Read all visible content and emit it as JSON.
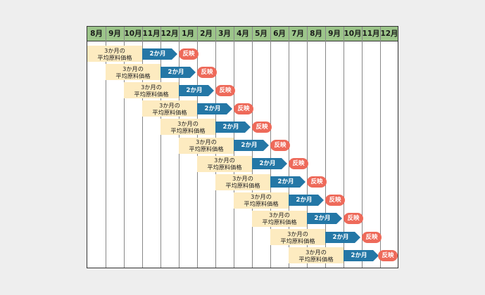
{
  "months": [
    "8月",
    "9月",
    "10月",
    "11月",
    "12月",
    "1月",
    "2月",
    "3月",
    "4月",
    "5月",
    "6月",
    "7月",
    "8月",
    "9月",
    "10月",
    "11月",
    "12月"
  ],
  "rows": [
    {
      "avg_line1": "3か月の",
      "avg_line2": "平均原料価格",
      "arrow": "2か月",
      "badge": "反映"
    },
    {
      "avg_line1": "3か月の",
      "avg_line2": "平均原料価格",
      "arrow": "2か月",
      "badge": "反映"
    },
    {
      "avg_line1": "3か月の",
      "avg_line2": "平均原料価格",
      "arrow": "2か月",
      "badge": "反映"
    },
    {
      "avg_line1": "3か月の",
      "avg_line2": "平均原料価格",
      "arrow": "2か月",
      "badge": "反映"
    },
    {
      "avg_line1": "3か月の",
      "avg_line2": "平均原料価格",
      "arrow": "2か月",
      "badge": "反映"
    },
    {
      "avg_line1": "3か月の",
      "avg_line2": "平均原料価格",
      "arrow": "2か月",
      "badge": "反映"
    },
    {
      "avg_line1": "3か月の",
      "avg_line2": "平均原料価格",
      "arrow": "2か月",
      "badge": "反映"
    },
    {
      "avg_line1": "3か月の",
      "avg_line2": "平均原料価格",
      "arrow": "2か月",
      "badge": "反映"
    },
    {
      "avg_line1": "3か月の",
      "avg_line2": "平均原料価格",
      "arrow": "2か月",
      "badge": "反映"
    },
    {
      "avg_line1": "3か月の",
      "avg_line2": "平均原料価格",
      "arrow": "2か月",
      "badge": "反映"
    },
    {
      "avg_line1": "3か月の",
      "avg_line2": "平均原料価格",
      "arrow": "2か月",
      "badge": "反映"
    },
    {
      "avg_line1": "3か月の",
      "avg_line2": "平均原料価格",
      "arrow": "2か月",
      "badge": "反映"
    }
  ],
  "colors": {
    "header": "#9cc58a",
    "avg_box": "#fdebc0",
    "arrow": "#2477a6",
    "badge": "#ee6a5a"
  }
}
